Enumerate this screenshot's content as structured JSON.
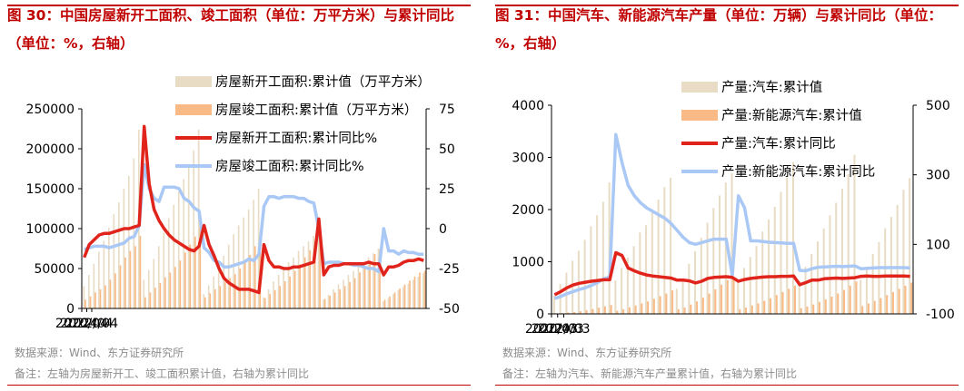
{
  "charts": [
    {
      "title": "图 30：中国房屋新开工面积、竣工面积（单位：万平方米）与累计同比（单位：%，右轴）",
      "source": "数据来源：Wind、东方证券研究所",
      "note": "备注：左轴为房屋新开工、竣工面积累计值，右轴为累计同比",
      "chart_data": {
        "type": "bar",
        "x_ticks": [
          "2020/04",
          "2022/04",
          "2024/04"
        ],
        "y_left": {
          "min": 0,
          "max": 250000,
          "ticks": [
            0,
            50000,
            100000,
            150000,
            200000,
            250000
          ]
        },
        "y_right": {
          "min": -50,
          "max": 75,
          "ticks": [
            -50,
            -25,
            0,
            25,
            50,
            75
          ]
        },
        "legend": [
          "房屋新开工面积:累计值（万平方米）",
          "房屋竣工面积:累计值（万平方米）",
          "房屋新开工面积:累计同比%",
          "房屋竣工面积:累计同比%"
        ],
        "colors": {
          "bar1": "#e8dcc4",
          "bar2": "#f7a35c",
          "line1": "#e0241b",
          "line2": "#a9c8f5"
        },
        "start": "2020-04",
        "bars1": [
          28000,
          42000,
          56000,
          71000,
          85000,
          101000,
          118000,
          133000,
          150000,
          166000,
          188000,
          224000,
          36000,
          48000,
          62000,
          78000,
          95000,
          113000,
          130000,
          146000,
          162000,
          178000,
          198000,
          224000,
          18000,
          29000,
          40000,
          53000,
          66000,
          80000,
          93000,
          104000,
          114000,
          124000,
          136000,
          150000,
          14000,
          24000,
          34000,
          42000,
          50000,
          58000,
          64000,
          72000,
          78000,
          84000,
          91000,
          100000,
          11000,
          17000,
          24000,
          30000,
          36000,
          42000,
          47000,
          53000,
          58000,
          64000,
          69000,
          75000,
          9000,
          13000,
          18000,
          23000,
          27000,
          31000,
          36000,
          40000,
          44000
        ],
        "bars2": [
          11000,
          15000,
          20000,
          24000,
          29000,
          36000,
          44000,
          54000,
          64000,
          72000,
          78000,
          91000,
          14000,
          20000,
          26000,
          32000,
          39000,
          45000,
          52000,
          60000,
          70000,
          80000,
          90000,
          101000,
          14000,
          19000,
          24000,
          28000,
          33000,
          38000,
          43000,
          50000,
          58000,
          67000,
          78000,
          86000,
          13000,
          18000,
          23000,
          28000,
          34000,
          40000,
          47000,
          55000,
          64000,
          73000,
          84000,
          100000,
          12000,
          16000,
          20000,
          24000,
          28000,
          33000,
          38000,
          45000,
          52000,
          60000,
          68000,
          74000,
          11000,
          15000,
          20000,
          25000,
          30000,
          35000,
          40000,
          45000,
          47000
        ],
        "line1": [
          -18,
          -10,
          -7,
          -4,
          -3,
          -3,
          -2,
          -1,
          0,
          0,
          1,
          2,
          64,
          28,
          12,
          5,
          0,
          -4,
          -7,
          -9,
          -11,
          -13,
          -14,
          -11,
          2,
          -10,
          -17,
          -25,
          -31,
          -34,
          -36,
          -38,
          -38,
          -38,
          -39,
          -40,
          -10,
          -20,
          -24,
          -24,
          -25,
          -25,
          -24,
          -24,
          -23,
          -22,
          -21,
          6,
          -29,
          -24,
          -23,
          -23,
          -22,
          -22,
          -22,
          -22,
          -22,
          -21,
          -22,
          -22,
          -29,
          -24,
          -24,
          -23,
          -21,
          -20,
          -20,
          -19,
          -20
        ],
        "line2": [
          -13,
          -12,
          -11,
          -11,
          -11,
          -12,
          -11,
          -10,
          -9,
          -6,
          -5,
          2,
          40,
          25,
          19,
          17,
          26,
          26,
          26,
          25,
          19,
          17,
          13,
          11,
          -12,
          -15,
          -20,
          -21,
          -24,
          -24,
          -23,
          -22,
          -21,
          -19,
          -20,
          -16,
          14,
          20,
          20,
          19,
          20,
          20,
          20,
          19,
          19,
          17,
          16,
          0,
          -22,
          -21,
          -21,
          -21,
          -22,
          -22,
          -23,
          -23,
          -24,
          -25,
          -25,
          -27,
          0,
          -14,
          -14,
          -16,
          -14,
          -15,
          -15,
          -16,
          -16
        ]
      }
    },
    {
      "title": "图 31：中国汽车、新能源汽车产量（单位：万辆）与累计同比（单位：%，右轴）",
      "source": "数据来源：Wind、东方证券研究所",
      "note": "备注：左轴为汽车、新能源汽车产量累计值，右轴为累计同比",
      "chart_data": {
        "type": "bar",
        "x_ticks": [
          "2020/03",
          "2022/03",
          "2024/03"
        ],
        "y_left": {
          "min": 0,
          "max": 4000,
          "ticks": [
            0,
            1000,
            2000,
            3000,
            4000
          ]
        },
        "y_right": {
          "min": -100,
          "max": 500,
          "ticks": [
            -100,
            100,
            300,
            500
          ]
        },
        "legend": [
          "产量:汽车:累计值",
          "产量:新能源汽车:累计值",
          "产量:汽车:累计同比",
          "产量:新能源汽车:累计同比"
        ],
        "colors": {
          "bar1": "#e8dcc4",
          "bar2": "#f7a35c",
          "line1": "#e0241b",
          "line2": "#a9c8f5"
        },
        "start": "2020-03",
        "bars1": [
          350,
          570,
          790,
          1020,
          1210,
          1420,
          1680,
          1890,
          2150,
          2520,
          640,
          880,
          1080,
          1300,
          1560,
          1700,
          1990,
          2190,
          2430,
          2610,
          480,
          650,
          960,
          1200,
          1460,
          1750,
          2030,
          2270,
          2520,
          2700,
          610,
          880,
          1090,
          1300,
          1580,
          1810,
          2050,
          2340,
          2620,
          2910,
          640,
          900,
          1150,
          1390,
          1640,
          1890,
          2130,
          2400,
          2680,
          3050,
          650,
          900,
          1150,
          1380,
          1640,
          1860,
          2090,
          2380,
          2600
        ],
        "bars2": [
          10,
          15,
          25,
          35,
          50,
          70,
          95,
          120,
          145,
          170,
          60,
          90,
          125,
          160,
          200,
          240,
          290,
          340,
          390,
          450,
          90,
          120,
          180,
          240,
          310,
          390,
          470,
          560,
          650,
          700,
          90,
          120,
          160,
          200,
          250,
          300,
          360,
          420,
          480,
          540,
          110,
          140,
          180,
          230,
          280,
          330,
          390,
          460,
          540,
          620,
          150,
          200,
          250,
          300,
          360,
          420,
          480,
          540,
          600
        ],
        "line1": [
          -45,
          -36,
          -25,
          -17,
          -12,
          -9,
          -6,
          -4,
          -2,
          -2,
          76,
          68,
          32,
          24,
          17,
          12,
          9,
          7,
          5,
          3,
          -3,
          -3,
          -5,
          -11,
          -6,
          2,
          5,
          6,
          7,
          5,
          -6,
          -1,
          2,
          4,
          6,
          7,
          7,
          8,
          8,
          9,
          -16,
          -10,
          -3,
          -3,
          1,
          2,
          3,
          2,
          3,
          4,
          8,
          9,
          8,
          8,
          9,
          9,
          9,
          9,
          8
        ],
        "line2": [
          -56,
          -50,
          -42,
          -36,
          -30,
          -25,
          -18,
          -10,
          1,
          6,
          416,
          335,
          270,
          240,
          220,
          205,
          195,
          185,
          175,
          160,
          140,
          120,
          105,
          100,
          105,
          110,
          115,
          115,
          115,
          10,
          240,
          205,
          110,
          110,
          108,
          106,
          105,
          104,
          103,
          103,
          25,
          24,
          30,
          34,
          35,
          36,
          37,
          36,
          37,
          38,
          30,
          31,
          32,
          33,
          33,
          33,
          33,
          33,
          32
        ]
      }
    }
  ]
}
